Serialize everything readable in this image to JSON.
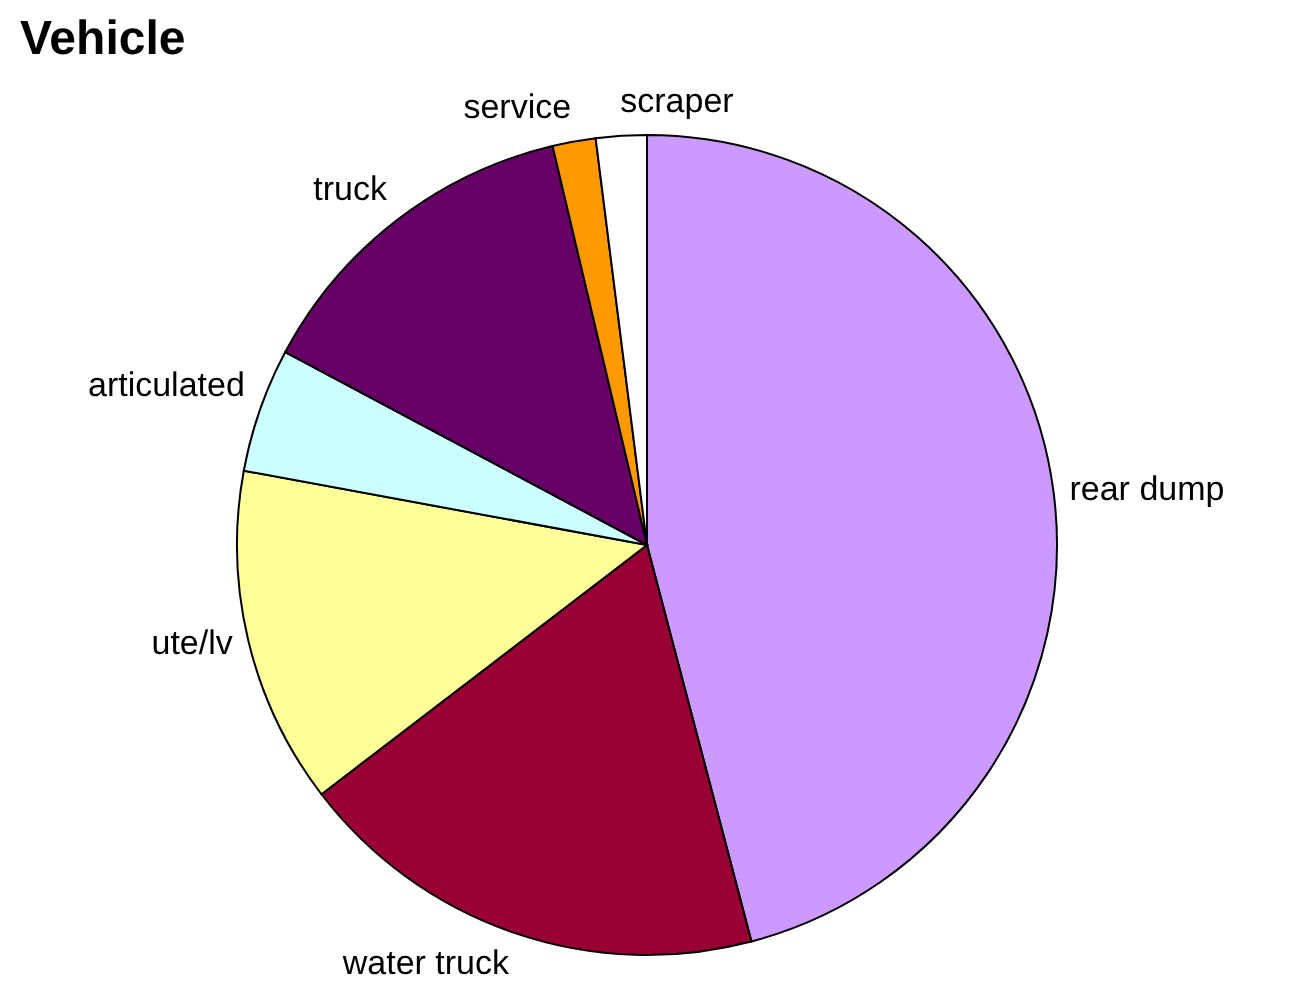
{
  "chart_data": {
    "type": "pie",
    "title": "Vehicle",
    "categories": [
      "rear dump",
      "water truck",
      "ute/lv",
      "articulated",
      "truck",
      "service",
      "scraper"
    ],
    "values": [
      45.9,
      18.7,
      13.3,
      4.9,
      13.5,
      1.7,
      2.0
    ],
    "colors": [
      "#cc99ff",
      "#990033",
      "#ffff99",
      "#ccffff",
      "#660066",
      "#ff9900",
      "#ffffff"
    ]
  }
}
